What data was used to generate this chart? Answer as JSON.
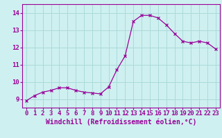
{
  "x": [
    0,
    1,
    2,
    3,
    4,
    5,
    6,
    7,
    8,
    9,
    10,
    11,
    12,
    13,
    14,
    15,
    16,
    17,
    18,
    19,
    20,
    21,
    22,
    23
  ],
  "y": [
    8.9,
    9.2,
    9.4,
    9.5,
    9.65,
    9.65,
    9.5,
    9.4,
    9.35,
    9.3,
    9.7,
    10.7,
    11.5,
    13.5,
    13.85,
    13.85,
    13.7,
    13.3,
    12.8,
    12.35,
    12.25,
    12.35,
    12.25,
    11.9
  ],
  "line_color": "#990099",
  "marker": "x",
  "marker_size": 3,
  "bg_color": "#cff0f0",
  "grid_color": "#aadada",
  "xlabel": "Windchill (Refroidissement éolien,°C)",
  "ylim": [
    8.5,
    14.5
  ],
  "xlim": [
    -0.5,
    23.5
  ],
  "yticks": [
    9,
    10,
    11,
    12,
    13,
    14
  ],
  "xticks": [
    0,
    1,
    2,
    3,
    4,
    5,
    6,
    7,
    8,
    9,
    10,
    11,
    12,
    13,
    14,
    15,
    16,
    17,
    18,
    19,
    20,
    21,
    22,
    23
  ],
  "tick_fontsize": 6.5,
  "xlabel_fontsize": 7,
  "spine_color": "#990099"
}
